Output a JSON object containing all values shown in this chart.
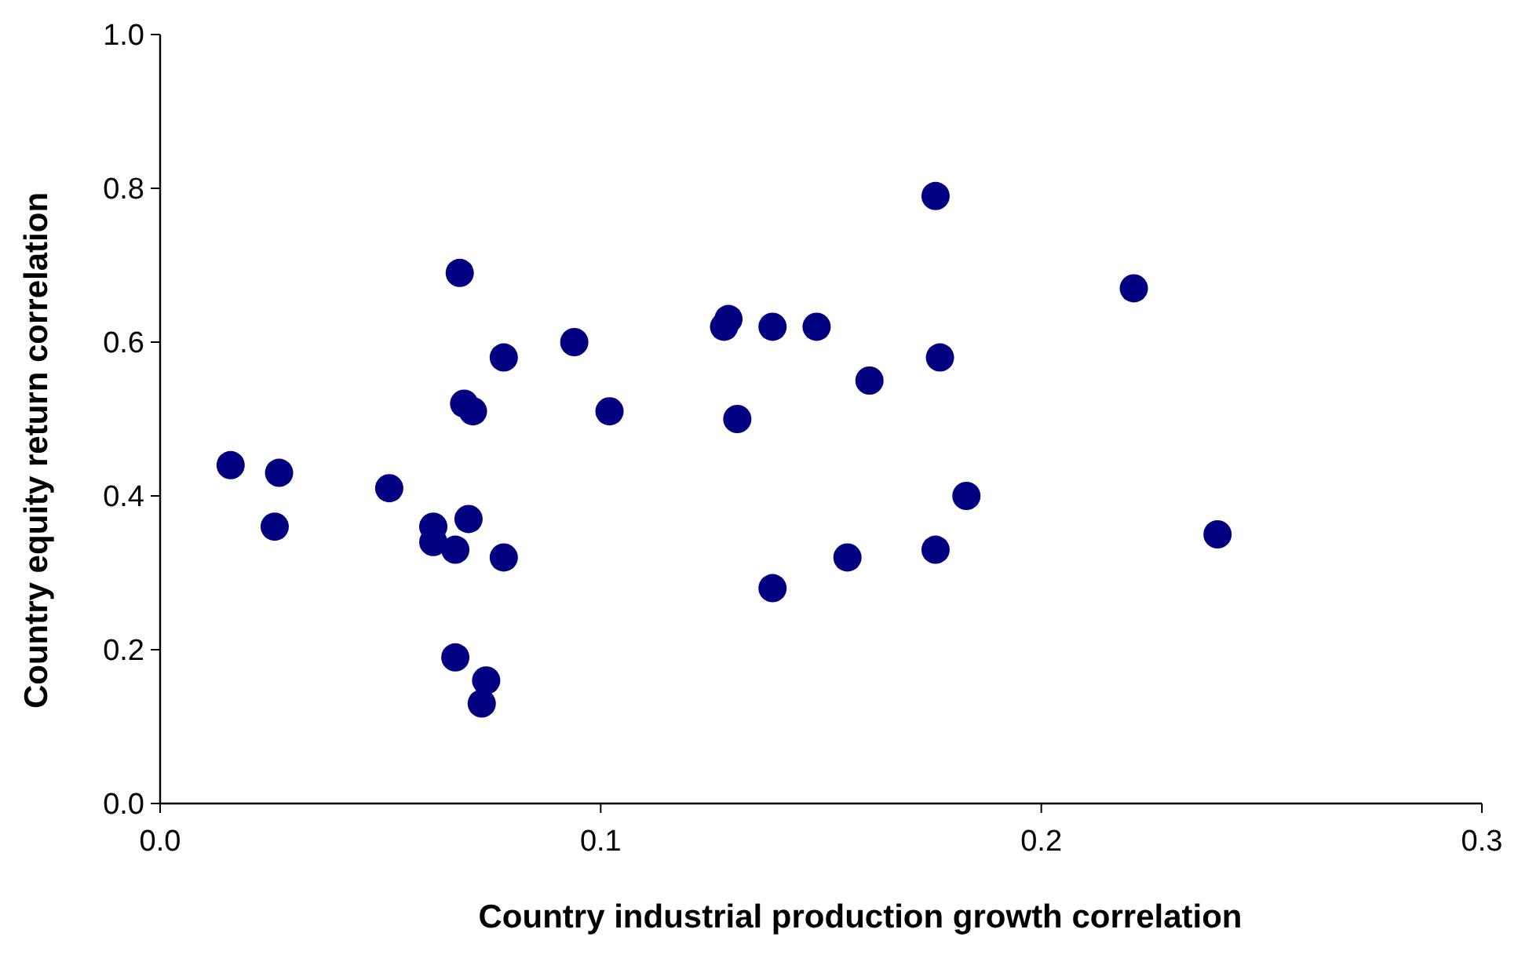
{
  "chart_data": {
    "type": "scatter",
    "xlabel": "Country industrial production growth correlation",
    "ylabel": "Country equity return correlation",
    "x": [
      0.016,
      0.027,
      0.026,
      0.052,
      0.062,
      0.062,
      0.067,
      0.07,
      0.068,
      0.069,
      0.071,
      0.078,
      0.078,
      0.067,
      0.074,
      0.073,
      0.094,
      0.102,
      0.128,
      0.129,
      0.131,
      0.139,
      0.149,
      0.139,
      0.156,
      0.161,
      0.177,
      0.176,
      0.176,
      0.183,
      0.221,
      0.24
    ],
    "series": [
      {
        "color": "#000080",
        "values": [
          0.44,
          0.43,
          0.36,
          0.41,
          0.36,
          0.34,
          0.33,
          0.37,
          0.69,
          0.52,
          0.51,
          0.58,
          0.32,
          0.19,
          0.16,
          0.13,
          0.6,
          0.51,
          0.62,
          0.63,
          0.5,
          0.62,
          0.62,
          0.28,
          0.32,
          0.55,
          0.58,
          0.33,
          0.79,
          0.4,
          0.67,
          0.35
        ]
      }
    ],
    "xlim": [
      0,
      0.3
    ],
    "ylim": [
      0,
      1
    ],
    "xticks": [
      {
        "value": 0,
        "label": "0.0"
      },
      0.1,
      0.2,
      0.3
    ],
    "yticks": [
      {
        "value": 0,
        "label": "0.0"
      },
      0.2,
      0.4,
      0.6,
      0.8,
      {
        "value": 1,
        "label": "1.0"
      }
    ],
    "grid": false,
    "marker": "circle"
  }
}
